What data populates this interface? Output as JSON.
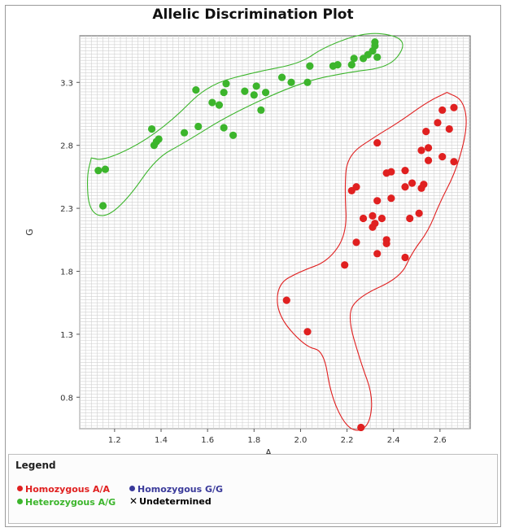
{
  "chart_data": {
    "type": "scatter",
    "title": "Allelic Discrimination Plot",
    "xlabel": "A",
    "ylabel": "G",
    "xlim": [
      1.05,
      2.73
    ],
    "ylim": [
      0.55,
      3.67
    ],
    "x_ticks": [
      "1.2",
      "1.4",
      "1.6",
      "1.8",
      "2.0",
      "2.2",
      "2.4",
      "2.6"
    ],
    "y_ticks": [
      "3.3",
      "2.8",
      "2.3",
      "1.8",
      "1.3",
      "0.8"
    ],
    "grid": true,
    "series": [
      {
        "name": "Homozygous A/A",
        "color": "#e02020",
        "points": [
          [
            2.26,
            0.56
          ],
          [
            2.03,
            1.32
          ],
          [
            1.94,
            1.57
          ],
          [
            2.19,
            1.85
          ],
          [
            2.24,
            2.03
          ],
          [
            2.33,
            1.94
          ],
          [
            2.37,
            2.02
          ],
          [
            2.37,
            2.05
          ],
          [
            2.45,
            1.91
          ],
          [
            2.31,
            2.15
          ],
          [
            2.27,
            2.22
          ],
          [
            2.31,
            2.24
          ],
          [
            2.32,
            2.18
          ],
          [
            2.35,
            2.22
          ],
          [
            2.47,
            2.22
          ],
          [
            2.51,
            2.26
          ],
          [
            2.33,
            2.36
          ],
          [
            2.39,
            2.38
          ],
          [
            2.22,
            2.44
          ],
          [
            2.24,
            2.47
          ],
          [
            2.45,
            2.47
          ],
          [
            2.48,
            2.5
          ],
          [
            2.52,
            2.46
          ],
          [
            2.53,
            2.49
          ],
          [
            2.37,
            2.58
          ],
          [
            2.39,
            2.59
          ],
          [
            2.45,
            2.6
          ],
          [
            2.55,
            2.68
          ],
          [
            2.52,
            2.76
          ],
          [
            2.55,
            2.78
          ],
          [
            2.61,
            2.71
          ],
          [
            2.66,
            2.67
          ],
          [
            2.33,
            2.82
          ],
          [
            2.54,
            2.91
          ],
          [
            2.59,
            2.98
          ],
          [
            2.64,
            2.93
          ],
          [
            2.61,
            3.08
          ],
          [
            2.66,
            3.1
          ]
        ]
      },
      {
        "name": "Homozygous G/G",
        "color": "#3a3a9a",
        "points": []
      },
      {
        "name": "Heterozygous A/G",
        "color": "#3cb52c",
        "points": [
          [
            1.15,
            2.32
          ],
          [
            1.13,
            2.6
          ],
          [
            1.16,
            2.61
          ],
          [
            1.37,
            2.8
          ],
          [
            1.38,
            2.83
          ],
          [
            1.39,
            2.85
          ],
          [
            1.36,
            2.93
          ],
          [
            1.5,
            2.9
          ],
          [
            1.56,
            2.95
          ],
          [
            1.67,
            2.94
          ],
          [
            1.71,
            2.88
          ],
          [
            1.62,
            3.14
          ],
          [
            1.65,
            3.12
          ],
          [
            1.67,
            3.22
          ],
          [
            1.55,
            3.24
          ],
          [
            1.68,
            3.29
          ],
          [
            1.76,
            3.23
          ],
          [
            1.8,
            3.2
          ],
          [
            1.81,
            3.27
          ],
          [
            1.83,
            3.08
          ],
          [
            1.85,
            3.22
          ],
          [
            1.92,
            3.34
          ],
          [
            1.96,
            3.3
          ],
          [
            2.03,
            3.3
          ],
          [
            2.04,
            3.43
          ],
          [
            2.14,
            3.43
          ],
          [
            2.16,
            3.44
          ],
          [
            2.22,
            3.44
          ],
          [
            2.23,
            3.49
          ],
          [
            2.27,
            3.49
          ],
          [
            2.29,
            3.52
          ],
          [
            2.31,
            3.55
          ],
          [
            2.33,
            3.5
          ],
          [
            2.32,
            3.59
          ],
          [
            2.32,
            3.62
          ]
        ]
      },
      {
        "name": "Undetermined",
        "color": "#000000",
        "points": []
      }
    ],
    "clusters": [
      {
        "name": "Heterozygous A/G",
        "color": "#3cb52c",
        "outline": [
          [
            1.1,
            2.7
          ],
          [
            1.15,
            2.68
          ],
          [
            1.3,
            2.8
          ],
          [
            1.45,
            3.0
          ],
          [
            1.6,
            3.28
          ],
          [
            1.8,
            3.38
          ],
          [
            2.0,
            3.45
          ],
          [
            2.1,
            3.58
          ],
          [
            2.28,
            3.7
          ],
          [
            2.42,
            3.67
          ],
          [
            2.45,
            3.58
          ],
          [
            2.38,
            3.42
          ],
          [
            2.2,
            3.38
          ],
          [
            2.0,
            3.3
          ],
          [
            1.7,
            3.05
          ],
          [
            1.5,
            2.82
          ],
          [
            1.38,
            2.7
          ],
          [
            1.26,
            2.38
          ],
          [
            1.16,
            2.22
          ],
          [
            1.09,
            2.28
          ],
          [
            1.08,
            2.55
          ],
          [
            1.1,
            2.7
          ]
        ]
      },
      {
        "name": "Homozygous A/A",
        "color": "#e02020",
        "outline": [
          [
            2.63,
            3.22
          ],
          [
            2.7,
            3.16
          ],
          [
            2.72,
            2.95
          ],
          [
            2.67,
            2.6
          ],
          [
            2.6,
            2.35
          ],
          [
            2.55,
            2.12
          ],
          [
            2.48,
            1.95
          ],
          [
            2.43,
            1.75
          ],
          [
            2.25,
            1.6
          ],
          [
            2.2,
            1.45
          ],
          [
            2.26,
            1.07
          ],
          [
            2.31,
            0.82
          ],
          [
            2.3,
            0.6
          ],
          [
            2.25,
            0.52
          ],
          [
            2.19,
            0.58
          ],
          [
            2.13,
            0.82
          ],
          [
            2.1,
            1.17
          ],
          [
            2.02,
            1.2
          ],
          [
            1.9,
            1.45
          ],
          [
            1.9,
            1.7
          ],
          [
            2.0,
            1.8
          ],
          [
            2.12,
            1.88
          ],
          [
            2.2,
            2.1
          ],
          [
            2.19,
            2.45
          ],
          [
            2.2,
            2.72
          ],
          [
            2.33,
            2.88
          ],
          [
            2.42,
            2.98
          ],
          [
            2.55,
            3.15
          ],
          [
            2.63,
            3.22
          ]
        ]
      }
    ],
    "legend_title": "Legend",
    "legend_position": "bottom"
  },
  "legend": {
    "title": "Legend",
    "items": [
      {
        "label": "Homozygous A/A",
        "color": "#e02020",
        "marker": "dot"
      },
      {
        "label": "Homozygous G/G",
        "color": "#3a3a9a",
        "marker": "dot"
      },
      {
        "label": "Heterozygous A/G",
        "color": "#3cb52c",
        "marker": "dot"
      },
      {
        "label": "Undetermined",
        "color": "#000000",
        "marker": "x"
      }
    ]
  }
}
